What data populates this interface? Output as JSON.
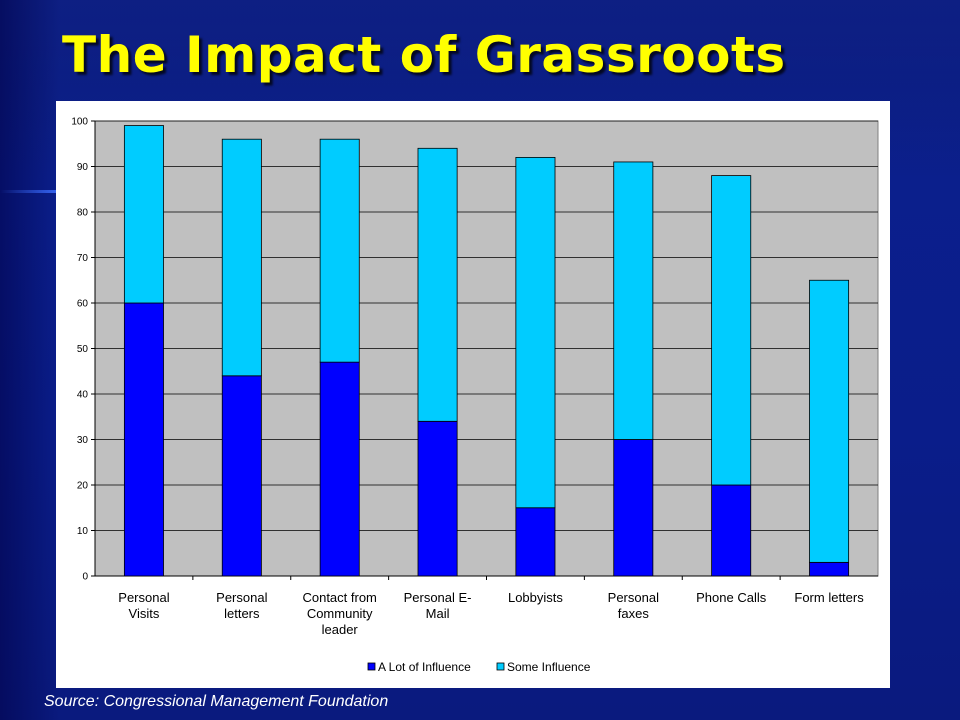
{
  "slide": {
    "title": "The Impact of Grassroots",
    "source": "Source:  Congressional Management Foundation"
  },
  "colors": {
    "background": "#0b1f8c",
    "title": "#ffff00",
    "plot_background": "#c0c0c0",
    "series_a_lot": "#0000ff",
    "series_some": "#00ccff"
  },
  "chart_data": {
    "type": "bar",
    "stacked": true,
    "categories": [
      [
        "Personal",
        "Visits"
      ],
      [
        "Personal",
        "letters"
      ],
      [
        "Contact from",
        "Community",
        "leader"
      ],
      [
        "Personal E-",
        "Mail"
      ],
      [
        "Lobbyists"
      ],
      [
        "Personal",
        "faxes"
      ],
      [
        "Phone Calls"
      ],
      [
        "Form letters"
      ]
    ],
    "series": [
      {
        "name": "A Lot of Influence",
        "color": "#0000ff",
        "values": [
          60,
          44,
          47,
          34,
          15,
          30,
          20,
          3
        ]
      },
      {
        "name": "Some Influence",
        "color": "#00ccff",
        "values": [
          39,
          52,
          49,
          60,
          77,
          61,
          68,
          62
        ]
      }
    ],
    "ylim": [
      0,
      100
    ],
    "yticks": [
      0,
      10,
      20,
      30,
      40,
      50,
      60,
      70,
      80,
      90,
      100
    ],
    "grid": true,
    "legend": "bottom",
    "title": "",
    "xlabel": "",
    "ylabel": ""
  }
}
